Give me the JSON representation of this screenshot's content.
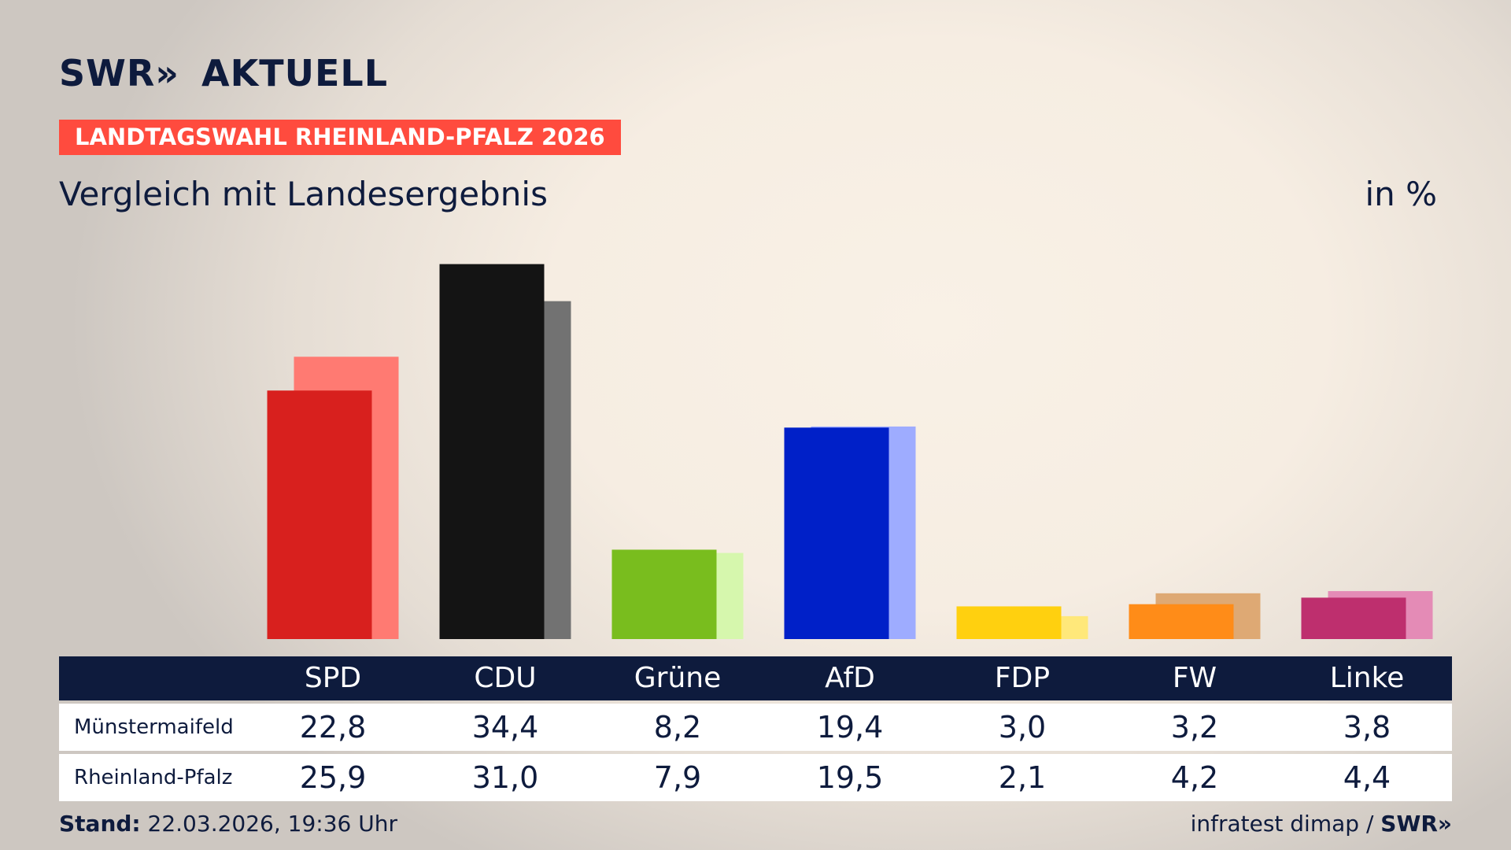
{
  "header": {
    "logo_text": "SWR",
    "logo_chevrons": "»",
    "logo_suffix": "AKTUELL",
    "badge": "LANDTAGSWAHL RHEINLAND-PFALZ 2026",
    "subtitle": "Vergleich mit Landesergebnis",
    "unit": "in %"
  },
  "footer": {
    "stand_label": "Stand:",
    "stand_value": "22.03.2026, 19:36 Uhr",
    "source": "infratest dimap /",
    "brand": "SWR»"
  },
  "chart_data": {
    "type": "bar",
    "title": "Vergleich mit Landesergebnis",
    "ylabel": "in %",
    "categories": [
      "SPD",
      "CDU",
      "Grüne",
      "AfD",
      "FDP",
      "FW",
      "Linke"
    ],
    "series": [
      {
        "name": "Münstermaifeld",
        "values": [
          22.8,
          34.4,
          8.2,
          19.4,
          3.0,
          3.2,
          3.8
        ],
        "labels": [
          "22,8",
          "34,4",
          "8,2",
          "19,4",
          "3,0",
          "3,2",
          "3,8"
        ],
        "colors": [
          "#d8201e",
          "#141414",
          "#79bd1e",
          "#0020c8",
          "#ffd00f",
          "#ff8c18",
          "#be2f6e"
        ]
      },
      {
        "name": "Rheinland-Pfalz",
        "values": [
          25.9,
          31.0,
          7.9,
          19.5,
          2.1,
          4.2,
          4.4
        ],
        "labels": [
          "25,9",
          "31,0",
          "7,9",
          "19,5",
          "2,1",
          "4,2",
          "4,4"
        ],
        "colors": [
          "#ff7a72",
          "#727272",
          "#d6f7ad",
          "#9eacff",
          "#ffe87a",
          "#dea974",
          "#e48bb6"
        ]
      }
    ],
    "ylim": [
      0,
      36
    ],
    "grid": false,
    "legend": "none"
  }
}
